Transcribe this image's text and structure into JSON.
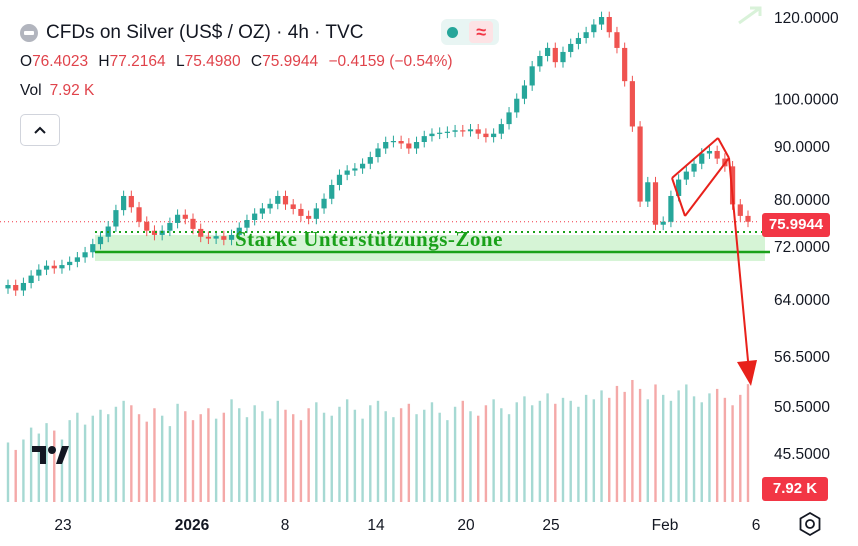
{
  "header": {
    "title": "CFDs on Silver (US$ / OZ) · 4h · TVC",
    "ohlc": {
      "o_label": "O",
      "o_value": "76.4023",
      "h_label": "H",
      "h_value": "77.2164",
      "l_label": "L",
      "l_value": "75.4980",
      "c_label": "C",
      "c_value": "75.9944",
      "change": "−0.4159 (−0.54%)"
    },
    "vol_label": "Vol",
    "vol_value": "7.92 K",
    "wave_icon": "≈"
  },
  "tags": {
    "price_tag": "75.9944",
    "volume_tag": "7.92 K"
  },
  "annotation": {
    "zone_label": "Starke Unterstützungs-Zone"
  },
  "colors": {
    "up": "#26a69a",
    "down": "#ef5350",
    "zone": "#1aa11a",
    "annotation_red": "#e8211b",
    "axis_text": "#131722",
    "price_tag_bg": "#f23645"
  },
  "chart_data": {
    "type": "candlestick",
    "price_axis_ticks": [
      "120.0000",
      "100.0000",
      "90.0000",
      "80.0000",
      "72.0000",
      "64.0000",
      "56.5000",
      "50.5000",
      "45.5000"
    ],
    "x_axis_ticks": [
      "23",
      "2026",
      "8",
      "14",
      "20",
      "25",
      "Feb",
      "6"
    ],
    "price_log_scale": true,
    "series": [
      {
        "name": "",
        "points": [
          [
            0,
            66.0
          ],
          [
            1,
            65.2
          ],
          [
            2,
            66.3
          ],
          [
            3,
            67.4
          ],
          [
            4,
            68.3
          ],
          [
            5,
            68.9
          ],
          [
            6,
            68.5
          ],
          [
            7,
            69.0
          ],
          [
            8,
            69.5
          ],
          [
            9,
            70.2
          ],
          [
            10,
            71.0
          ],
          [
            11,
            72.3
          ],
          [
            12,
            73.5
          ],
          [
            13,
            75.2
          ],
          [
            14,
            78.0
          ],
          [
            15,
            80.5
          ],
          [
            16,
            78.5
          ],
          [
            17,
            76.0
          ],
          [
            18,
            74.5
          ],
          [
            19,
            73.8
          ],
          [
            20,
            74.5
          ],
          [
            21,
            75.8
          ],
          [
            22,
            77.2
          ],
          [
            23,
            76.5
          ],
          [
            24,
            74.8
          ],
          [
            25,
            73.5
          ],
          [
            26,
            73.2
          ],
          [
            27,
            73.6
          ],
          [
            28,
            73.0
          ],
          [
            29,
            73.8
          ],
          [
            30,
            75.0
          ],
          [
            31,
            76.3
          ],
          [
            32,
            77.4
          ],
          [
            33,
            78.3
          ],
          [
            34,
            79.1
          ],
          [
            35,
            80.5
          ],
          [
            36,
            79.0
          ],
          [
            37,
            78.2
          ],
          [
            38,
            77.0
          ],
          [
            39,
            76.5
          ],
          [
            40,
            78.3
          ],
          [
            41,
            80.0
          ],
          [
            42,
            82.5
          ],
          [
            43,
            84.4
          ],
          [
            44,
            85.2
          ],
          [
            45,
            85.6
          ],
          [
            46,
            86.5
          ],
          [
            47,
            87.8
          ],
          [
            48,
            89.5
          ],
          [
            49,
            90.8
          ],
          [
            50,
            91.0
          ],
          [
            51,
            90.5
          ],
          [
            52,
            89.5
          ],
          [
            53,
            90.8
          ],
          [
            54,
            92.0
          ],
          [
            55,
            92.5
          ],
          [
            56,
            92.7
          ],
          [
            57,
            92.9
          ],
          [
            58,
            93.2
          ],
          [
            59,
            93.0
          ],
          [
            60,
            93.4
          ],
          [
            61,
            92.5
          ],
          [
            62,
            91.8
          ],
          [
            63,
            92.5
          ],
          [
            64,
            94.5
          ],
          [
            65,
            97.0
          ],
          [
            66,
            100.0
          ],
          [
            67,
            103.0
          ],
          [
            68,
            107.5
          ],
          [
            69,
            110.0
          ],
          [
            70,
            112.0
          ],
          [
            71,
            108.5
          ],
          [
            72,
            111.0
          ],
          [
            73,
            113.0
          ],
          [
            74,
            114.5
          ],
          [
            75,
            116.0
          ],
          [
            76,
            118.0
          ],
          [
            77,
            120.0
          ],
          [
            78,
            116.0
          ],
          [
            79,
            112.0
          ],
          [
            80,
            104.0
          ],
          [
            81,
            94.0
          ],
          [
            82,
            79.5
          ],
          [
            83,
            83.0
          ],
          [
            84,
            75.5
          ],
          [
            85,
            76.0
          ],
          [
            86,
            80.5
          ],
          [
            87,
            83.5
          ],
          [
            88,
            85.0
          ],
          [
            89,
            86.5
          ],
          [
            90,
            88.5
          ],
          [
            91,
            89.0
          ],
          [
            92,
            87.5
          ],
          [
            93,
            86.0
          ],
          [
            94,
            79.0
          ],
          [
            95,
            77.0
          ],
          [
            96,
            76.0
          ]
        ]
      }
    ],
    "volume": [
      4,
      3.5,
      4.2,
      5,
      4.6,
      5.3,
      4.8,
      4.2,
      5.5,
      6.0,
      5.2,
      5.8,
      6.2,
      5.9,
      6.4,
      6.8,
      6.5,
      5.9,
      5.4,
      6.3,
      5.8,
      5.1,
      6.6,
      6.1,
      5.5,
      5.9,
      6.3,
      5.6,
      6.0,
      6.9,
      6.3,
      5.7,
      6.5,
      6.1,
      5.6,
      6.8,
      6.2,
      5.9,
      5.5,
      6.3,
      6.7,
      6.0,
      5.8,
      6.4,
      6.9,
      6.2,
      5.6,
      6.5,
      6.8,
      6.1,
      5.7,
      6.3,
      6.6,
      5.9,
      6.2,
      6.7,
      6.0,
      5.5,
      6.4,
      6.8,
      6.1,
      5.8,
      6.5,
      6.9,
      6.3,
      5.9,
      6.7,
      7.1,
      6.5,
      6.8,
      7.3,
      6.6,
      7.0,
      6.8,
      6.4,
      7.2,
      6.9,
      7.5,
      7.0,
      7.8,
      7.4,
      8.2,
      7.6,
      6.9,
      7.9,
      7.2,
      6.8,
      7.5,
      7.9,
      7.1,
      6.7,
      7.3,
      7.6,
      7.0,
      6.5,
      7.2,
      7.92
    ]
  }
}
